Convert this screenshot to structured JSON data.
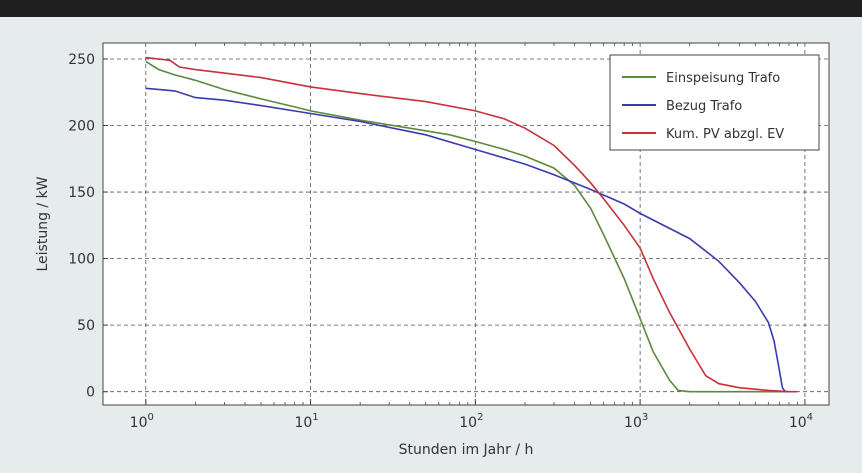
{
  "chart_data": {
    "type": "line",
    "title": "",
    "xlabel": "Stunden im Jahr / h",
    "ylabel": "Leistung / kW",
    "x_scale": "log",
    "xlim": [
      0.55,
      14000
    ],
    "ylim": [
      -10,
      262
    ],
    "grid": true,
    "legend_position": "top-right",
    "x_ticks": [
      {
        "value": 1,
        "base": "10",
        "exp": "0"
      },
      {
        "value": 10,
        "base": "10",
        "exp": "1"
      },
      {
        "value": 100,
        "base": "10",
        "exp": "2"
      },
      {
        "value": 1000,
        "base": "10",
        "exp": "3"
      },
      {
        "value": 10000,
        "base": "10",
        "exp": "4"
      }
    ],
    "y_ticks": [
      0,
      50,
      100,
      150,
      200,
      250
    ],
    "series": [
      {
        "name": "Einspeisung Trafo",
        "color": "#5b8a3c",
        "points": [
          [
            1,
            248
          ],
          [
            1.2,
            242
          ],
          [
            1.5,
            238
          ],
          [
            2,
            234
          ],
          [
            3,
            227
          ],
          [
            5,
            220
          ],
          [
            8,
            214
          ],
          [
            10,
            211
          ],
          [
            20,
            204
          ],
          [
            40,
            198
          ],
          [
            70,
            193
          ],
          [
            100,
            188
          ],
          [
            150,
            182
          ],
          [
            200,
            177
          ],
          [
            300,
            168
          ],
          [
            400,
            155
          ],
          [
            500,
            138
          ],
          [
            600,
            118
          ],
          [
            800,
            85
          ],
          [
            1000,
            55
          ],
          [
            1200,
            30
          ],
          [
            1500,
            9
          ],
          [
            1700,
            1
          ],
          [
            2000,
            0
          ],
          [
            5000,
            0
          ],
          [
            7500,
            0
          ]
        ]
      },
      {
        "name": "Bezug Trafo",
        "color": "#3b3bb0",
        "points": [
          [
            1,
            228
          ],
          [
            1.5,
            226
          ],
          [
            2,
            221
          ],
          [
            3,
            219
          ],
          [
            5,
            215
          ],
          [
            10,
            209
          ],
          [
            20,
            203
          ],
          [
            50,
            193
          ],
          [
            100,
            182
          ],
          [
            200,
            171
          ],
          [
            300,
            163
          ],
          [
            500,
            152
          ],
          [
            800,
            141
          ],
          [
            1000,
            134
          ],
          [
            2000,
            115
          ],
          [
            3000,
            98
          ],
          [
            4000,
            82
          ],
          [
            5000,
            68
          ],
          [
            6000,
            52
          ],
          [
            6500,
            38
          ],
          [
            7000,
            16
          ],
          [
            7300,
            3
          ],
          [
            7600,
            0
          ],
          [
            8000,
            0
          ]
        ]
      },
      {
        "name": "Kum. PV abzgl. EV",
        "color": "#c8303a",
        "points": [
          [
            1,
            251
          ],
          [
            1.4,
            249
          ],
          [
            1.6,
            244
          ],
          [
            2,
            242
          ],
          [
            5,
            236
          ],
          [
            10,
            229
          ],
          [
            20,
            224
          ],
          [
            50,
            218
          ],
          [
            100,
            211
          ],
          [
            150,
            205
          ],
          [
            200,
            198
          ],
          [
            300,
            185
          ],
          [
            400,
            170
          ],
          [
            500,
            157
          ],
          [
            600,
            145
          ],
          [
            800,
            125
          ],
          [
            1000,
            108
          ],
          [
            1200,
            85
          ],
          [
            1500,
            60
          ],
          [
            2000,
            32
          ],
          [
            2500,
            12
          ],
          [
            3000,
            6
          ],
          [
            4000,
            3
          ],
          [
            6000,
            1
          ],
          [
            8000,
            0
          ],
          [
            9000,
            0
          ]
        ]
      }
    ]
  }
}
